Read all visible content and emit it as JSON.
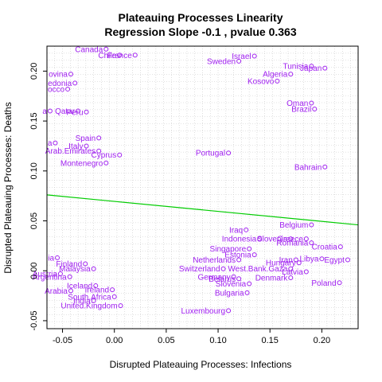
{
  "chart_data": {
    "type": "scatter",
    "title": "Plateauing Processes Linearity",
    "subtitle": "Regression Slope -0.1 , pvalue 0.363",
    "xlabel": "Disrupted Plateauing Processes: Infections",
    "ylabel": "Disrupted Plateauing Processes: Deaths",
    "xlim": [
      -0.065,
      0.235
    ],
    "ylim": [
      -0.058,
      0.225
    ],
    "xticks": [
      -0.05,
      0.0,
      0.05,
      0.1,
      0.15,
      0.2
    ],
    "xtick_labels": [
      "-0.05",
      "0.00",
      "0.05",
      "0.10",
      "0.15",
      "0.20"
    ],
    "yticks": [
      -0.05,
      0.0,
      0.05,
      0.1,
      0.15,
      0.2
    ],
    "ytick_labels": [
      "-0.05",
      "0.00",
      "0.05",
      "0.10",
      "0.15",
      "0.20"
    ],
    "grid": true,
    "point_color": "#a020f0",
    "line_color": "#00cc00",
    "regression_line": {
      "x": [
        -0.065,
        0.235
      ],
      "y": [
        0.076,
        0.046
      ]
    },
    "points": [
      {
        "label": "Canada",
        "x": -0.008,
        "y": 0.222
      },
      {
        "label": "Chile",
        "x": 0.005,
        "y": 0.216
      },
      {
        "label": "France",
        "x": 0.02,
        "y": 0.216
      },
      {
        "label": "Israel",
        "x": 0.135,
        "y": 0.215
      },
      {
        "label": "Sweden",
        "x": 0.12,
        "y": 0.21
      },
      {
        "label": "Tunisia",
        "x": 0.19,
        "y": 0.205
      },
      {
        "label": "Japan",
        "x": 0.203,
        "y": 0.203
      },
      {
        "label": "Algeria",
        "x": 0.17,
        "y": 0.197
      },
      {
        "label": "Kosovo",
        "x": 0.157,
        "y": 0.19
      },
      {
        "label": "ovina",
        "x": -0.042,
        "y": 0.197
      },
      {
        "label": "edonia",
        "x": -0.038,
        "y": 0.188
      },
      {
        "label": "occo",
        "x": -0.045,
        "y": 0.182
      },
      {
        "label": "Oman",
        "x": 0.19,
        "y": 0.168
      },
      {
        "label": "Brazil",
        "x": 0.193,
        "y": 0.162
      },
      {
        "label": "a",
        "x": -0.062,
        "y": 0.16
      },
      {
        "label": "Qatar",
        "x": -0.035,
        "y": 0.16
      },
      {
        "label": "Peru",
        "x": -0.027,
        "y": 0.159
      },
      {
        "label": "Spain",
        "x": -0.015,
        "y": 0.133
      },
      {
        "label": "a",
        "x": -0.057,
        "y": 0.128
      },
      {
        "label": "Italy",
        "x": -0.027,
        "y": 0.125
      },
      {
        "label": "Arab.Emirates",
        "x": -0.015,
        "y": 0.12
      },
      {
        "label": "Cyprus",
        "x": 0.005,
        "y": 0.116
      },
      {
        "label": "Portugal",
        "x": 0.11,
        "y": 0.118
      },
      {
        "label": "Montenegro",
        "x": -0.008,
        "y": 0.108
      },
      {
        "label": "Bahrain",
        "x": 0.203,
        "y": 0.104
      },
      {
        "label": "Belgium",
        "x": 0.19,
        "y": 0.046
      },
      {
        "label": "Iraq",
        "x": 0.127,
        "y": 0.041
      },
      {
        "label": "Indonesia",
        "x": 0.14,
        "y": 0.032
      },
      {
        "label": "Slovenia",
        "x": 0.17,
        "y": 0.032
      },
      {
        "label": "Greece",
        "x": 0.185,
        "y": 0.032
      },
      {
        "label": "Romania",
        "x": 0.19,
        "y": 0.028
      },
      {
        "label": "Croatia",
        "x": 0.218,
        "y": 0.024
      },
      {
        "label": "Singapore",
        "x": 0.13,
        "y": 0.022
      },
      {
        "label": "Estonia",
        "x": 0.135,
        "y": 0.016
      },
      {
        "label": "Netherlands",
        "x": 0.12,
        "y": 0.011
      },
      {
        "label": "Iran",
        "x": 0.175,
        "y": 0.011
      },
      {
        "label": "Hungary",
        "x": 0.178,
        "y": 0.008
      },
      {
        "label": "Libya",
        "x": 0.2,
        "y": 0.012
      },
      {
        "label": "Egypt",
        "x": 0.225,
        "y": 0.011
      },
      {
        "label": "Switzerland",
        "x": 0.105,
        "y": 0.002
      },
      {
        "label": "West.Bank.Gaza",
        "x": 0.17,
        "y": 0.002
      },
      {
        "label": "Latvia",
        "x": 0.185,
        "y": -0.001
      },
      {
        "label": "Germany",
        "x": 0.115,
        "y": -0.006
      },
      {
        "label": "Belarus",
        "x": 0.12,
        "y": -0.008
      },
      {
        "label": "Denmark",
        "x": 0.17,
        "y": -0.007
      },
      {
        "label": "Slovenia",
        "x": 0.13,
        "y": -0.013
      },
      {
        "label": "Bulgaria",
        "x": 0.128,
        "y": -0.022
      },
      {
        "label": "Poland",
        "x": 0.217,
        "y": -0.012
      },
      {
        "label": "Luxembourg",
        "x": 0.11,
        "y": -0.04
      },
      {
        "label": "ia",
        "x": -0.055,
        "y": 0.013
      },
      {
        "label": "Finland",
        "x": -0.028,
        "y": 0.007
      },
      {
        "label": "Malaysia",
        "x": -0.02,
        "y": 0.002
      },
      {
        "label": "Austria",
        "x": -0.052,
        "y": -0.003
      },
      {
        "label": "Argentina",
        "x": -0.043,
        "y": -0.006
      },
      {
        "label": "Iceland",
        "x": -0.018,
        "y": -0.015
      },
      {
        "label": "Ireland",
        "x": -0.002,
        "y": -0.019
      },
      {
        "label": "Arabia",
        "x": -0.042,
        "y": -0.02
      },
      {
        "label": "South.Africa",
        "x": 0.0,
        "y": -0.026
      },
      {
        "label": "India",
        "x": -0.02,
        "y": -0.03
      },
      {
        "label": "United.Kingdom",
        "x": 0.006,
        "y": -0.035
      }
    ]
  }
}
